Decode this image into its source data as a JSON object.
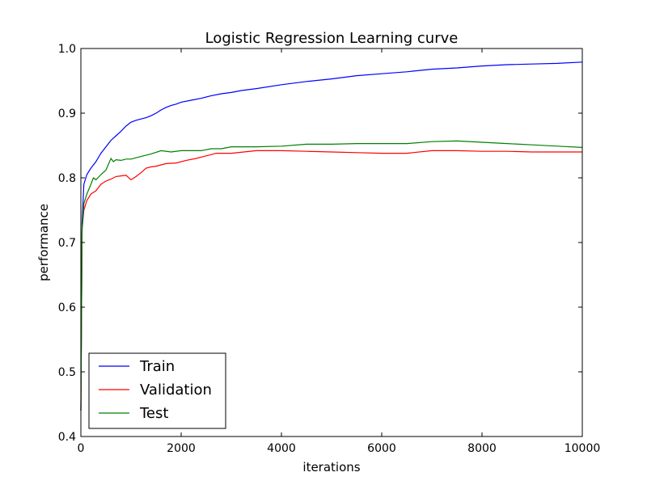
{
  "chart_data": {
    "type": "line",
    "title": "Logistic Regression Learning curve",
    "xlabel": "iterations",
    "ylabel": "performance",
    "xlim": [
      0,
      10000
    ],
    "ylim": [
      0.4,
      1.0
    ],
    "x_ticks": [
      "0",
      "2000",
      "4000",
      "6000",
      "8000",
      "10000"
    ],
    "y_ticks": [
      "0.4",
      "0.5",
      "0.6",
      "0.7",
      "0.8",
      "0.9",
      "1.0"
    ],
    "grid": false,
    "legend_position": "bottom-left",
    "series": [
      {
        "name": "Train",
        "color": "#0000ff",
        "points": [
          [
            0,
            0.44
          ],
          [
            25,
            0.73
          ],
          [
            60,
            0.79
          ],
          [
            120,
            0.805
          ],
          [
            200,
            0.815
          ],
          [
            300,
            0.825
          ],
          [
            400,
            0.838
          ],
          [
            500,
            0.848
          ],
          [
            600,
            0.858
          ],
          [
            700,
            0.865
          ],
          [
            800,
            0.872
          ],
          [
            900,
            0.88
          ],
          [
            1000,
            0.886
          ],
          [
            1100,
            0.889
          ],
          [
            1200,
            0.891
          ],
          [
            1300,
            0.893
          ],
          [
            1400,
            0.896
          ],
          [
            1500,
            0.9
          ],
          [
            1600,
            0.905
          ],
          [
            1700,
            0.909
          ],
          [
            1800,
            0.912
          ],
          [
            1900,
            0.914
          ],
          [
            2000,
            0.917
          ],
          [
            2200,
            0.92
          ],
          [
            2400,
            0.923
          ],
          [
            2600,
            0.927
          ],
          [
            2800,
            0.93
          ],
          [
            3000,
            0.932
          ],
          [
            3200,
            0.935
          ],
          [
            3500,
            0.938
          ],
          [
            4000,
            0.944
          ],
          [
            4500,
            0.949
          ],
          [
            5000,
            0.953
          ],
          [
            5500,
            0.958
          ],
          [
            6000,
            0.961
          ],
          [
            6500,
            0.964
          ],
          [
            7000,
            0.968
          ],
          [
            7500,
            0.97
          ],
          [
            8000,
            0.973
          ],
          [
            8500,
            0.975
          ],
          [
            9000,
            0.976
          ],
          [
            9500,
            0.977
          ],
          [
            10000,
            0.979
          ]
        ]
      },
      {
        "name": "Validation",
        "color": "#ff0000",
        "points": [
          [
            0,
            0.44
          ],
          [
            25,
            0.72
          ],
          [
            60,
            0.75
          ],
          [
            120,
            0.765
          ],
          [
            200,
            0.775
          ],
          [
            300,
            0.78
          ],
          [
            400,
            0.79
          ],
          [
            500,
            0.795
          ],
          [
            600,
            0.798
          ],
          [
            700,
            0.802
          ],
          [
            800,
            0.803
          ],
          [
            900,
            0.804
          ],
          [
            1000,
            0.797
          ],
          [
            1100,
            0.802
          ],
          [
            1200,
            0.808
          ],
          [
            1300,
            0.815
          ],
          [
            1400,
            0.817
          ],
          [
            1500,
            0.818
          ],
          [
            1700,
            0.822
          ],
          [
            1900,
            0.823
          ],
          [
            2100,
            0.827
          ],
          [
            2300,
            0.83
          ],
          [
            2500,
            0.834
          ],
          [
            2700,
            0.838
          ],
          [
            3000,
            0.838
          ],
          [
            3500,
            0.842
          ],
          [
            4000,
            0.842
          ],
          [
            4500,
            0.841
          ],
          [
            5000,
            0.84
          ],
          [
            5500,
            0.839
          ],
          [
            6000,
            0.838
          ],
          [
            6500,
            0.838
          ],
          [
            7000,
            0.842
          ],
          [
            7500,
            0.842
          ],
          [
            8000,
            0.841
          ],
          [
            8500,
            0.841
          ],
          [
            9000,
            0.84
          ],
          [
            10000,
            0.84
          ]
        ]
      },
      {
        "name": "Test",
        "color": "#008000",
        "points": [
          [
            0,
            0.44
          ],
          [
            25,
            0.72
          ],
          [
            60,
            0.76
          ],
          [
            120,
            0.775
          ],
          [
            200,
            0.79
          ],
          [
            250,
            0.8
          ],
          [
            300,
            0.797
          ],
          [
            400,
            0.805
          ],
          [
            500,
            0.812
          ],
          [
            600,
            0.83
          ],
          [
            650,
            0.825
          ],
          [
            700,
            0.828
          ],
          [
            800,
            0.827
          ],
          [
            900,
            0.829
          ],
          [
            1000,
            0.829
          ],
          [
            1200,
            0.833
          ],
          [
            1400,
            0.837
          ],
          [
            1600,
            0.842
          ],
          [
            1800,
            0.84
          ],
          [
            2000,
            0.842
          ],
          [
            2400,
            0.842
          ],
          [
            2600,
            0.845
          ],
          [
            2800,
            0.845
          ],
          [
            3000,
            0.848
          ],
          [
            3500,
            0.848
          ],
          [
            4000,
            0.849
          ],
          [
            4500,
            0.852
          ],
          [
            5000,
            0.852
          ],
          [
            5500,
            0.853
          ],
          [
            6000,
            0.853
          ],
          [
            6500,
            0.853
          ],
          [
            7000,
            0.856
          ],
          [
            7500,
            0.857
          ],
          [
            8000,
            0.855
          ],
          [
            8500,
            0.853
          ],
          [
            9000,
            0.851
          ],
          [
            9500,
            0.849
          ],
          [
            10000,
            0.847
          ]
        ]
      }
    ]
  }
}
